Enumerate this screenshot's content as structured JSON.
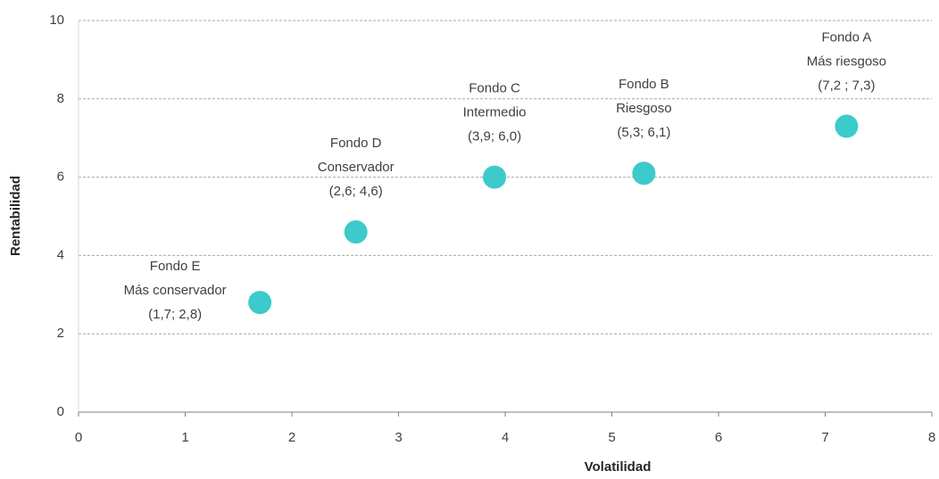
{
  "chart_data": {
    "type": "scatter",
    "xlabel": "Volatilidad",
    "ylabel": "Rentabilidad",
    "xlim": [
      0,
      8
    ],
    "xticks": [
      0,
      1,
      2,
      3,
      4,
      5,
      6,
      7,
      8
    ],
    "ylim": [
      0,
      10
    ],
    "yticks": [
      0,
      2,
      4,
      6,
      8,
      10
    ],
    "grid": true,
    "series": [
      {
        "color": "#3ccaca",
        "x": [
          1.7,
          2.6,
          3.9,
          5.3,
          7.2
        ],
        "values": [
          2.8,
          4.6,
          6.0,
          6.1,
          7.3
        ],
        "names": [
          "Fondo E",
          "Fondo D",
          "Fondo C",
          "Fondo B",
          "Fondo A"
        ],
        "descriptions": [
          "Más conservador",
          "Conservador",
          "Intermedio",
          "Riesgoso",
          "Más riesgoso"
        ],
        "value_labels": [
          "(1,7; 2,8)",
          "(2,6; 4,6)",
          "(3,9; 6,0)",
          "(5,3; 6,1)",
          "(7,2 ; 7,3)"
        ]
      }
    ]
  }
}
